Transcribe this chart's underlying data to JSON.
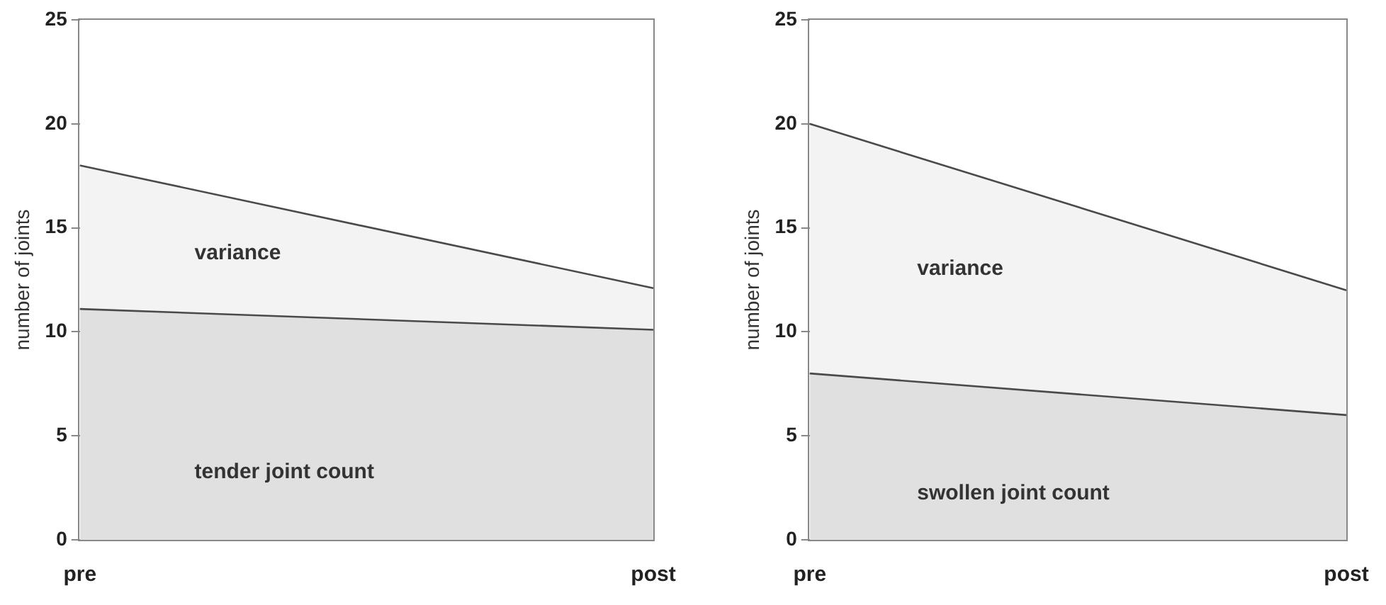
{
  "chart_data": [
    {
      "type": "area",
      "stacked": true,
      "ylabel": "number of joints",
      "categories": [
        "pre",
        "post"
      ],
      "ylim": [
        0,
        25
      ],
      "yticks": [
        0,
        5,
        10,
        15,
        20,
        25
      ],
      "grid": false,
      "legend": false,
      "marker": "none",
      "series": [
        {
          "name": "tender joint count",
          "color": "#e0e0e0",
          "values": [
            11.1,
            10.1
          ]
        },
        {
          "name": "variance",
          "color": "#f3f3f3",
          "values": [
            6.9,
            2.0
          ]
        }
      ]
    },
    {
      "type": "area",
      "stacked": true,
      "ylabel": "number of joints",
      "categories": [
        "pre",
        "post"
      ],
      "ylim": [
        0,
        25
      ],
      "yticks": [
        0,
        5,
        10,
        15,
        20,
        25
      ],
      "grid": false,
      "legend": false,
      "marker": "none",
      "series": [
        {
          "name": "swollen joint count",
          "color": "#e0e0e0",
          "values": [
            8,
            6
          ]
        },
        {
          "name": "variance",
          "color": "#f3f3f3",
          "values": [
            12,
            6
          ]
        }
      ]
    }
  ]
}
